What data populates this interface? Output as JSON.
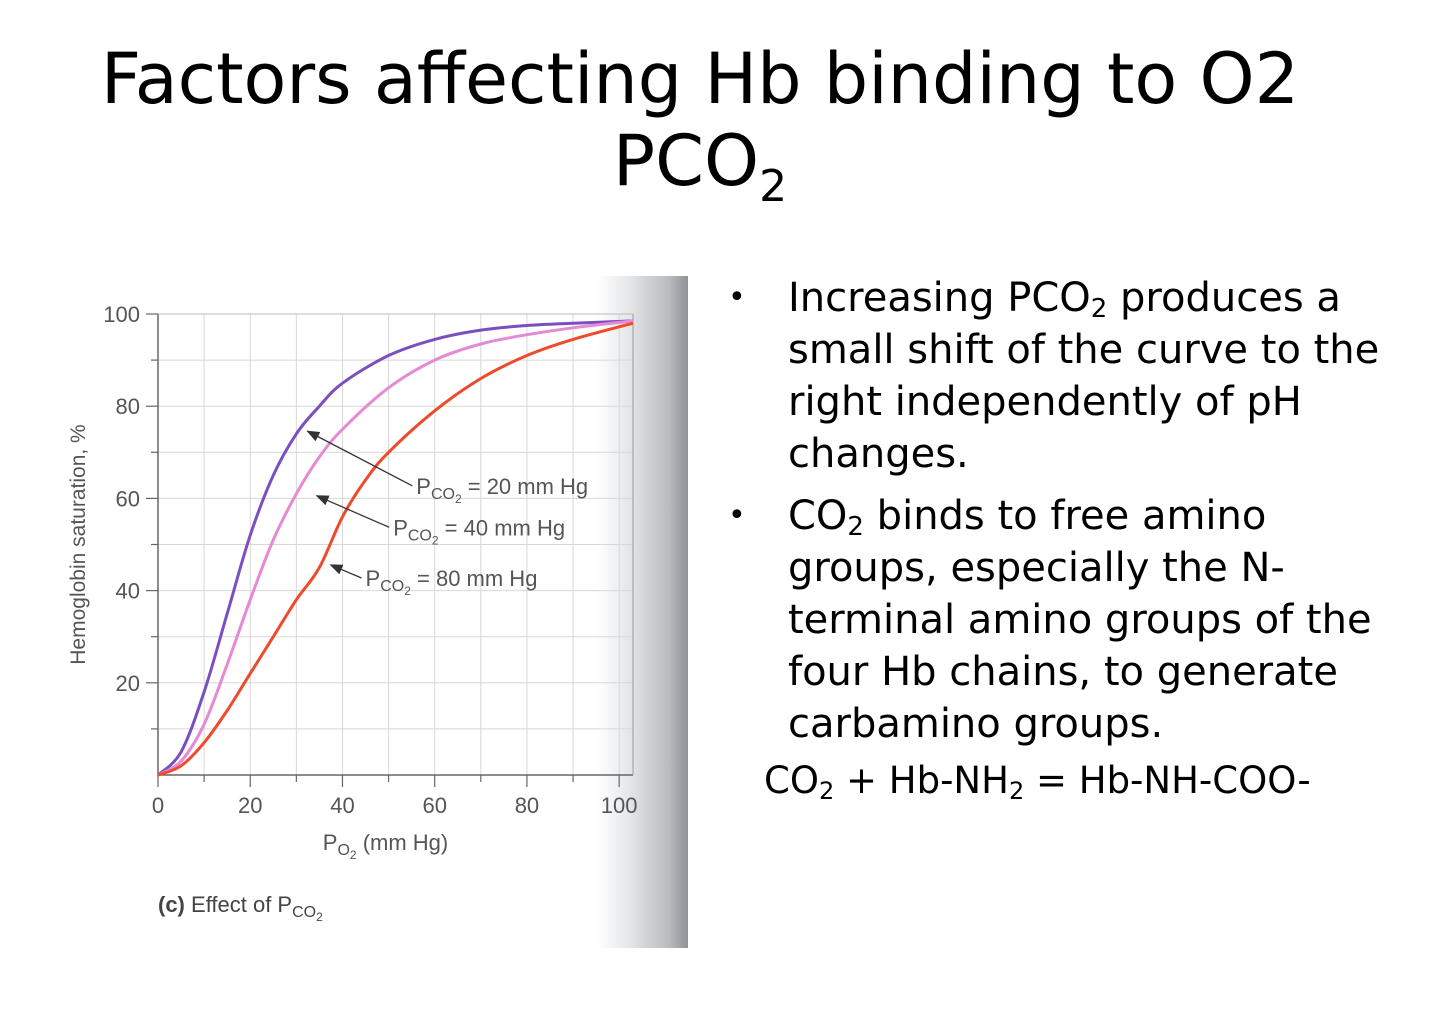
{
  "slide": {
    "title_line1": "Factors affecting Hb binding to O2",
    "title_line2_main": "PCO",
    "title_line2_sub": "2"
  },
  "bullets": [
    {
      "parts": [
        {
          "t": "Increasing PCO"
        },
        {
          "sub": "2"
        },
        {
          "t": " produces a small shift of the curve to the right independently of pH changes."
        }
      ]
    },
    {
      "parts": [
        {
          "t": "CO"
        },
        {
          "sub": "2"
        },
        {
          "t": " binds to free amino groups, especially the N-terminal amino groups of the four Hb chains, to generate carbamino groups."
        }
      ]
    }
  ],
  "equation": {
    "parts": [
      {
        "t": "CO"
      },
      {
        "sub": "2"
      },
      {
        "t": " + Hb-NH"
      },
      {
        "sub": "2"
      },
      {
        "t": " = Hb-NH-COO-"
      }
    ]
  },
  "chart_data": {
    "type": "line",
    "caption_prefix": "(c)",
    "caption_text": "Effect of P",
    "caption_sub": "CO",
    "caption_subsub": "2",
    "xlabel_main": "P",
    "xlabel_sub": "O",
    "xlabel_subsub": "2",
    "xlabel_rest": " (mm Hg)",
    "ylabel": "Hemoglobin saturation, %",
    "xlim": [
      0,
      103
    ],
    "ylim": [
      0,
      100
    ],
    "xticks": [
      0,
      20,
      40,
      60,
      80,
      100
    ],
    "yticks": [
      20,
      40,
      60,
      80,
      100
    ],
    "grid": true,
    "series": [
      {
        "name_main": "P",
        "name_sub": "CO",
        "name_subsub": "2",
        "name_rest": " = 20 mm Hg",
        "color": "#7a4fbf",
        "arrow_to": [
          32,
          75
        ],
        "label_at": [
          56,
          61
        ],
        "x": [
          0,
          5,
          10,
          15,
          20,
          25,
          30,
          35,
          40,
          50,
          60,
          70,
          80,
          90,
          103
        ],
        "y": [
          0,
          5,
          18,
          35,
          52,
          65,
          74,
          80,
          85,
          91,
          94.5,
          96.5,
          97.5,
          98,
          98.5
        ]
      },
      {
        "name_main": "P",
        "name_sub": "CO",
        "name_subsub": "2",
        "name_rest": " = 40 mm Hg",
        "color": "#e48ad6",
        "arrow_to": [
          34,
          61
        ],
        "label_at": [
          51,
          52
        ],
        "x": [
          0,
          5,
          10,
          15,
          20,
          25,
          30,
          35,
          40,
          50,
          60,
          70,
          80,
          90,
          103
        ],
        "y": [
          0,
          3,
          11,
          24,
          38,
          51,
          61,
          69,
          75,
          84,
          90,
          93.5,
          95.5,
          97,
          98.5
        ]
      },
      {
        "name_main": "P",
        "name_sub": "CO",
        "name_subsub": "2",
        "name_rest": " = 80 mm Hg",
        "color": "#ef4a2c",
        "arrow_to": [
          37,
          46
        ],
        "label_at": [
          45,
          41
        ],
        "x": [
          0,
          5,
          10,
          15,
          20,
          25,
          30,
          35,
          40,
          45,
          50,
          60,
          70,
          80,
          90,
          103
        ],
        "y": [
          0,
          2,
          7,
          14,
          22,
          30,
          38,
          45,
          56,
          64,
          70,
          79,
          86,
          91,
          94.5,
          98
        ]
      }
    ]
  }
}
